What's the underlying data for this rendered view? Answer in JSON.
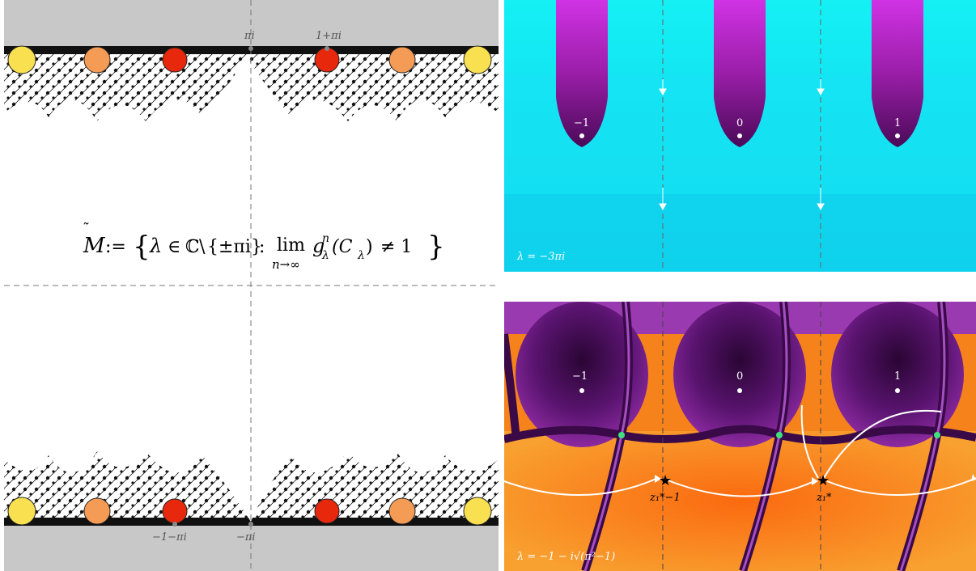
{
  "left_panel": {
    "formula": {
      "lhs": "M",
      "assign": ":=",
      "set_open": "{",
      "lambda": "λ",
      "in_symbol": "∈",
      "complex": "ℂ",
      "minus": "\\",
      "excluded": "{±πi}",
      "colon": ":",
      "lim": "lim",
      "lim_sub": "n→∞",
      "g": "g",
      "g_sup": "n",
      "g_sub": "λ",
      "arg": "(C",
      "arg_sub": "λ",
      "arg_close": ")",
      "neq": "≠ 1",
      "set_close": "}"
    },
    "top_labels": {
      "pi_i": "πi",
      "one_plus_pi_i": "1+πi"
    },
    "bottom_labels": {
      "minus_one_minus_pi_i": "−1−πi",
      "minus_pi_i": "−πi"
    },
    "colors": {
      "gray_band": "#c8c8c8",
      "yellow": "#f8e050",
      "orange": "#f49b55",
      "red": "#e8280c",
      "fractal": "#111111"
    }
  },
  "top_right_panel": {
    "point_labels": [
      "−1",
      "0",
      "1"
    ],
    "parameter_label": "λ = −3πi",
    "colors": {
      "background": "#19e0f2",
      "lobe": "#9a1ea8",
      "lobe_tip": "#d040e0"
    }
  },
  "bottom_right_panel": {
    "point_labels": [
      "−1",
      "0",
      "1"
    ],
    "star_labels": {
      "left": "z₁*−1",
      "right": "z₁*"
    },
    "parameter_label": "λ = −1 − i√(π²−1)",
    "colors": {
      "purple": "#3d0a4a",
      "orange": "#f6821c",
      "green": "#40e080"
    }
  }
}
